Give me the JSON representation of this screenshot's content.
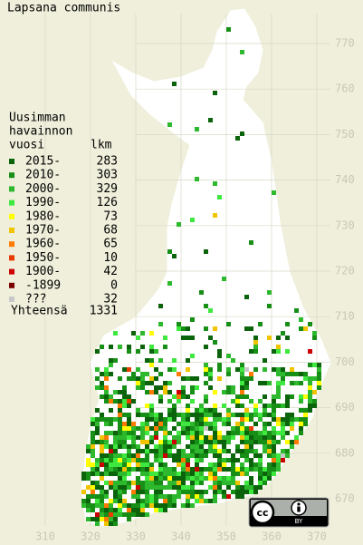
{
  "map": {
    "title": "Lapsana communis",
    "legend_heading": [
      "Uusimman",
      "havainnon",
      "vuosi"
    ],
    "count_heading": "lkm",
    "legend": [
      {
        "label": "2015-",
        "count": 283,
        "color": "#0b640b"
      },
      {
        "label": "2010-",
        "count": 303,
        "color": "#178f17"
      },
      {
        "label": "2000-",
        "count": 329,
        "color": "#2db82d"
      },
      {
        "label": "1990-",
        "count": 126,
        "color": "#3ee83e"
      },
      {
        "label": "1980-",
        "count": 73,
        "color": "#ffff00"
      },
      {
        "label": "1970-",
        "count": 68,
        "color": "#f0c400"
      },
      {
        "label": "1960-",
        "count": 65,
        "color": "#ff7a00"
      },
      {
        "label": "1950-",
        "count": 10,
        "color": "#e83c00"
      },
      {
        "label": "1900-",
        "count": 42,
        "color": "#cc0000"
      },
      {
        "label": "-1899",
        "count": 0,
        "color": "#7a0000"
      },
      {
        "label": "???",
        "count": 32,
        "color": "#c8c8c8"
      }
    ],
    "total_label": "Yhteensä",
    "total": 1331,
    "yticks": [
      770,
      760,
      750,
      740,
      730,
      720,
      710,
      700,
      690,
      680,
      670
    ],
    "xticks": [
      310,
      320,
      330,
      340,
      350,
      360,
      370
    ],
    "license": [
      "cc",
      "BY"
    ]
  }
}
